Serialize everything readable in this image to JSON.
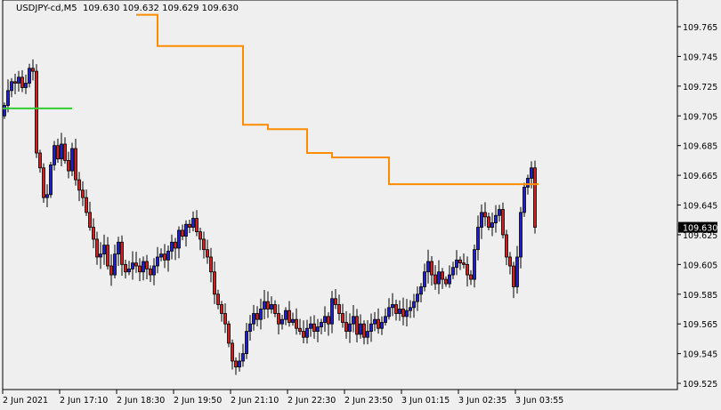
{
  "header": {
    "symbol": "USDJPY-cd,M5",
    "ohlc": "109.630 109.632 109.629 109.630"
  },
  "colors": {
    "background": "#efefef",
    "bull": "#1f1fd0",
    "bear": "#d02020",
    "outline": "#000000",
    "green_level": "#33cc33",
    "orange_level": "#ff8c00"
  },
  "chart_data": {
    "type": "candlestick",
    "ylim": [
      109.52,
      109.775
    ],
    "y_ticks": [
      "109.765",
      "109.745",
      "109.725",
      "109.705",
      "109.685",
      "109.665",
      "109.645",
      "109.625",
      "109.605",
      "109.585",
      "109.565",
      "109.545",
      "109.525"
    ],
    "x_ticks": [
      "2 Jun 2021",
      "2 Jun 17:10",
      "2 Jun 18:30",
      "2 Jun 19:50",
      "2 Jun 21:10",
      "2 Jun 22:30",
      "2 Jun 23:50",
      "3 Jun 01:15",
      "3 Jun 02:35",
      "3 Jun 03:55"
    ],
    "first_open": 109.705,
    "closes": [
      109.712,
      109.722,
      109.728,
      109.727,
      109.731,
      109.724,
      109.727,
      109.737,
      109.735,
      109.68,
      109.67,
      109.65,
      109.652,
      109.672,
      109.685,
      109.676,
      109.686,
      109.675,
      109.668,
      109.683,
      109.662,
      109.655,
      109.65,
      109.64,
      109.63,
      109.622,
      109.61,
      109.612,
      109.618,
      109.604,
      109.598,
      109.612,
      109.62,
      109.605,
      109.6,
      109.602,
      109.606,
      109.604,
      109.6,
      109.607,
      109.602,
      109.598,
      109.604,
      109.61,
      109.612,
      109.608,
      109.614,
      109.62,
      109.616,
      109.628,
      109.624,
      109.632,
      109.63,
      109.636,
      109.627,
      109.622,
      109.615,
      109.61,
      109.6,
      109.585,
      109.578,
      109.572,
      109.565,
      109.552,
      109.54,
      109.536,
      109.54,
      109.545,
      109.56,
      109.565,
      109.572,
      109.568,
      109.575,
      109.58,
      109.575,
      109.578,
      109.572,
      109.565,
      109.568,
      109.574,
      109.566,
      109.568,
      109.562,
      109.56,
      109.556,
      109.562,
      109.565,
      109.56,
      109.563,
      109.566,
      109.57,
      109.565,
      109.582,
      109.578,
      109.572,
      109.566,
      109.56,
      109.565,
      109.57,
      109.558,
      109.565,
      109.556,
      109.56,
      109.565,
      109.568,
      109.562,
      109.566,
      109.57,
      109.576,
      109.578,
      109.572,
      109.575,
      109.57,
      109.574,
      109.576,
      109.58,
      109.585,
      109.59,
      109.6,
      109.607,
      109.598,
      109.592,
      109.6,
      109.595,
      109.592,
      109.598,
      109.603,
      109.608,
      109.606,
      109.605,
      109.598,
      109.595,
      109.615,
      109.63,
      109.64,
      109.637,
      109.63,
      109.633,
      109.638,
      109.642,
      109.625,
      109.61,
      109.604,
      109.59,
      109.61,
      109.64,
      109.657,
      109.663,
      109.67,
      109.63
    ],
    "green_level": {
      "price": 109.71,
      "from_bar": 0,
      "to_bar": 19
    },
    "orange_steps": [
      {
        "price": 109.773,
        "from_bar": 37,
        "to_bar": 43
      },
      {
        "price": 109.752,
        "from_bar": 43,
        "to_bar": 67
      },
      {
        "price": 109.699,
        "from_bar": 67,
        "to_bar": 74
      },
      {
        "price": 109.696,
        "from_bar": 74,
        "to_bar": 85
      },
      {
        "price": 109.68,
        "from_bar": 85,
        "to_bar": 92
      },
      {
        "price": 109.677,
        "from_bar": 92,
        "to_bar": 108
      },
      {
        "price": 109.659,
        "from_bar": 108,
        "to_bar": 150
      }
    ],
    "last_price": "109.630"
  }
}
